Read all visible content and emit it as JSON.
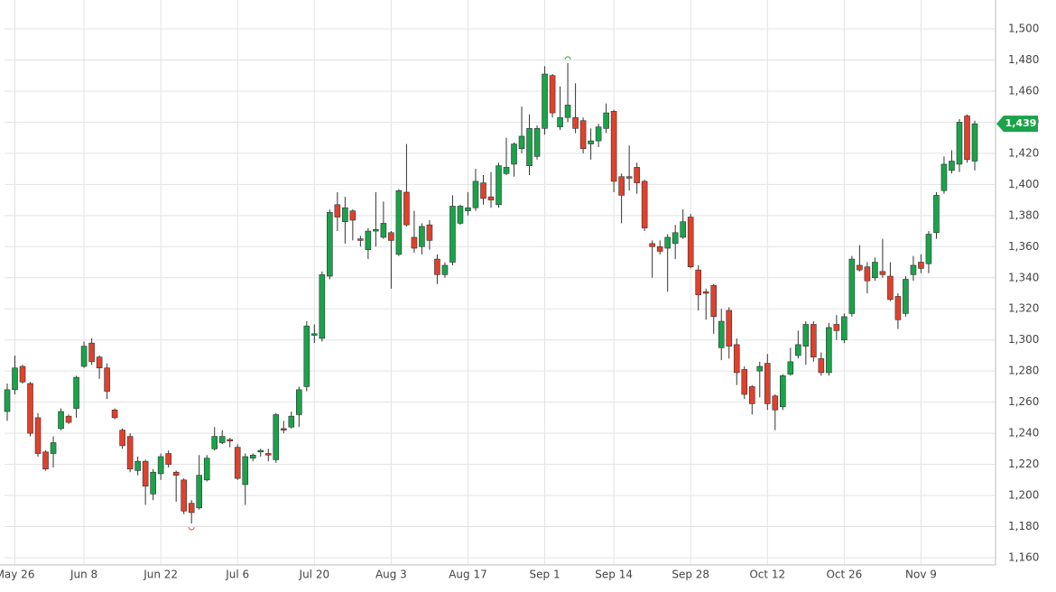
{
  "chart_data": {
    "type": "candlestick",
    "categories": [
      null,
      "May 26",
      null,
      null,
      null,
      null,
      null,
      null,
      null,
      null,
      "Jun 8",
      null,
      null,
      null,
      null,
      null,
      null,
      null,
      null,
      null,
      "Jun 22",
      null,
      null,
      null,
      null,
      null,
      null,
      null,
      null,
      null,
      "Jul 6",
      null,
      null,
      null,
      null,
      null,
      null,
      null,
      null,
      null,
      "Jul 20",
      null,
      null,
      null,
      null,
      null,
      null,
      null,
      null,
      null,
      "Aug 3",
      null,
      null,
      null,
      null,
      null,
      null,
      null,
      null,
      null,
      "Aug 17",
      null,
      null,
      null,
      null,
      null,
      null,
      null,
      null,
      null,
      "Sep 1",
      null,
      null,
      null,
      null,
      null,
      null,
      null,
      null,
      "Sep 14",
      null,
      null,
      null,
      null,
      null,
      null,
      null,
      null,
      null,
      "Sep 28",
      null,
      null,
      null,
      null,
      null,
      null,
      null,
      null,
      null,
      "Oct 12",
      null,
      null,
      null,
      null,
      null,
      null,
      null,
      null,
      null,
      "Oct 26",
      null,
      null,
      null,
      null,
      null,
      null,
      null,
      null,
      null,
      "Nov 9",
      null,
      null,
      null,
      null,
      null,
      null,
      null
    ],
    "ohlc": [
      [
        1254,
        1272,
        1248,
        1268
      ],
      [
        1268,
        1290,
        1265,
        1282
      ],
      [
        1283,
        1284,
        1272,
        1273
      ],
      [
        1272,
        1273,
        1238,
        1240
      ],
      [
        1250,
        1253,
        1225,
        1227
      ],
      [
        1228,
        1229,
        1216,
        1217
      ],
      [
        1227,
        1238,
        1218,
        1234
      ],
      [
        1243,
        1256,
        1242,
        1254
      ],
      [
        1251,
        1252,
        1246,
        1247
      ],
      [
        1256,
        1277,
        1250,
        1276
      ],
      [
        1283,
        1299,
        1282,
        1296
      ],
      [
        1298,
        1301,
        1284,
        1286
      ],
      [
        1289,
        1290,
        1275,
        1282
      ],
      [
        1282,
        1285,
        1262,
        1267
      ],
      [
        1255,
        1256,
        1249,
        1250
      ],
      [
        1242,
        1243,
        1230,
        1232
      ],
      [
        1238,
        1240,
        1215,
        1217
      ],
      [
        1216,
        1225,
        1213,
        1222
      ],
      [
        1222,
        1223,
        1194,
        1206
      ],
      [
        1201,
        1217,
        1197,
        1215
      ],
      [
        1214,
        1227,
        1210,
        1225
      ],
      [
        1227,
        1229,
        1218,
        1220
      ],
      [
        1215,
        1216,
        1196,
        1213
      ],
      [
        1210,
        1211,
        1188,
        1190
      ],
      [
        1195,
        1197,
        1182,
        1189
      ],
      [
        1192,
        1226,
        1191,
        1213
      ],
      [
        1210,
        1226,
        1209,
        1224
      ],
      [
        1230,
        1244,
        1229,
        1238
      ],
      [
        1234,
        1242,
        1233,
        1238
      ],
      [
        1236,
        1237,
        1231,
        1235
      ],
      [
        1231,
        1233,
        1210,
        1211
      ],
      [
        1207,
        1227,
        1194,
        1225
      ],
      [
        1224,
        1227,
        1222,
        1226
      ],
      [
        1228,
        1230,
        1225,
        1229
      ],
      [
        1227,
        1230,
        1222,
        1226
      ],
      [
        1223,
        1253,
        1221,
        1252
      ],
      [
        1243,
        1248,
        1240,
        1242
      ],
      [
        1244,
        1254,
        1243,
        1251
      ],
      [
        1252,
        1270,
        1244,
        1268
      ],
      [
        1270,
        1312,
        1267,
        1309
      ],
      [
        1303,
        1310,
        1298,
        1304
      ],
      [
        1301,
        1344,
        1299,
        1342
      ],
      [
        1341,
        1384,
        1339,
        1382
      ],
      [
        1387,
        1395,
        1370,
        1379
      ],
      [
        1376,
        1392,
        1362,
        1385
      ],
      [
        1383,
        1384,
        1364,
        1377
      ],
      [
        1365,
        1367,
        1360,
        1364
      ],
      [
        1358,
        1372,
        1352,
        1370
      ],
      [
        1370,
        1395,
        1360,
        1371
      ],
      [
        1366,
        1389,
        1365,
        1375
      ],
      [
        1369,
        1370,
        1333,
        1364
      ],
      [
        1355,
        1397,
        1354,
        1396
      ],
      [
        1395,
        1426,
        1373,
        1374
      ],
      [
        1366,
        1383,
        1356,
        1359
      ],
      [
        1360,
        1375,
        1355,
        1373
      ],
      [
        1374,
        1377,
        1358,
        1364
      ],
      [
        1352,
        1355,
        1336,
        1342
      ],
      [
        1342,
        1350,
        1340,
        1348
      ],
      [
        1350,
        1393,
        1348,
        1386
      ],
      [
        1375,
        1387,
        1374,
        1386
      ],
      [
        1383,
        1395,
        1380,
        1385
      ],
      [
        1385,
        1410,
        1383,
        1402
      ],
      [
        1401,
        1406,
        1387,
        1391
      ],
      [
        1392,
        1408,
        1385,
        1390
      ],
      [
        1387,
        1414,
        1385,
        1412
      ],
      [
        1407,
        1430,
        1406,
        1411
      ],
      [
        1413,
        1427,
        1405,
        1426
      ],
      [
        1423,
        1450,
        1420,
        1431
      ],
      [
        1412,
        1445,
        1406,
        1436
      ],
      [
        1418,
        1438,
        1416,
        1436
      ],
      [
        1436,
        1476,
        1432,
        1471
      ],
      [
        1470,
        1471,
        1443,
        1446
      ],
      [
        1437,
        1463,
        1435,
        1443
      ],
      [
        1443,
        1478,
        1440,
        1451
      ],
      [
        1443,
        1465,
        1433,
        1436
      ],
      [
        1441,
        1443,
        1420,
        1423
      ],
      [
        1426,
        1436,
        1416,
        1428
      ],
      [
        1428,
        1439,
        1424,
        1437
      ],
      [
        1436,
        1452,
        1433,
        1446
      ],
      [
        1447,
        1448,
        1395,
        1402
      ],
      [
        1405,
        1407,
        1375,
        1393
      ],
      [
        1405,
        1425,
        1396,
        1404
      ],
      [
        1411,
        1414,
        1394,
        1401
      ],
      [
        1402,
        1403,
        1370,
        1372
      ],
      [
        1362,
        1364,
        1340,
        1360
      ],
      [
        1360,
        1364,
        1355,
        1357
      ],
      [
        1359,
        1368,
        1331,
        1366
      ],
      [
        1362,
        1374,
        1352,
        1369
      ],
      [
        1366,
        1384,
        1365,
        1376
      ],
      [
        1379,
        1381,
        1346,
        1347
      ],
      [
        1345,
        1348,
        1319,
        1329
      ],
      [
        1331,
        1333,
        1313,
        1330
      ],
      [
        1335,
        1336,
        1304,
        1315
      ],
      [
        1295,
        1320,
        1287,
        1312
      ],
      [
        1319,
        1321,
        1288,
        1296
      ],
      [
        1297,
        1301,
        1271,
        1279
      ],
      [
        1281,
        1283,
        1262,
        1265
      ],
      [
        1270,
        1271,
        1252,
        1259
      ],
      [
        1280,
        1286,
        1263,
        1283
      ],
      [
        1285,
        1291,
        1255,
        1259
      ],
      [
        1264,
        1265,
        1242,
        1255
      ],
      [
        1257,
        1278,
        1255,
        1277
      ],
      [
        1278,
        1295,
        1277,
        1286
      ],
      [
        1290,
        1306,
        1288,
        1297
      ],
      [
        1296,
        1312,
        1284,
        1310
      ],
      [
        1310,
        1312,
        1286,
        1289
      ],
      [
        1288,
        1292,
        1277,
        1279
      ],
      [
        1279,
        1311,
        1277,
        1308
      ],
      [
        1310,
        1316,
        1300,
        1306
      ],
      [
        1300,
        1317,
        1298,
        1315
      ],
      [
        1317,
        1354,
        1315,
        1352
      ],
      [
        1348,
        1361,
        1344,
        1345
      ],
      [
        1347,
        1350,
        1330,
        1338
      ],
      [
        1340,
        1353,
        1338,
        1350
      ],
      [
        1344,
        1365,
        1340,
        1342
      ],
      [
        1341,
        1350,
        1325,
        1326
      ],
      [
        1328,
        1330,
        1307,
        1313
      ],
      [
        1317,
        1341,
        1315,
        1339
      ],
      [
        1342,
        1354,
        1338,
        1348
      ],
      [
        1350,
        1355,
        1343,
        1346
      ],
      [
        1349,
        1370,
        1343,
        1368
      ],
      [
        1369,
        1395,
        1365,
        1393
      ],
      [
        1396,
        1418,
        1394,
        1413
      ],
      [
        1409,
        1422,
        1407,
        1415
      ],
      [
        1413,
        1442,
        1408,
        1440
      ],
      [
        1444,
        1445,
        1414,
        1416
      ],
      [
        1415,
        1441,
        1409,
        1439
      ]
    ],
    "up_color": "#1aa34a",
    "down_color": "#e0412c",
    "ylim": [
      1160,
      1500
    ],
    "yticks": [
      {
        "value": 1160,
        "label": "1,160"
      },
      {
        "value": 1180,
        "label": "1,180"
      },
      {
        "value": 1200,
        "label": "1,200"
      },
      {
        "value": 1220,
        "label": "1,220"
      },
      {
        "value": 1240,
        "label": "1,240"
      },
      {
        "value": 1260,
        "label": "1,260"
      },
      {
        "value": 1280,
        "label": "1,280"
      },
      {
        "value": 1300,
        "label": "1,300"
      },
      {
        "value": 1320,
        "label": "1,320"
      },
      {
        "value": 1340,
        "label": "1,340"
      },
      {
        "value": 1360,
        "label": "1,360"
      },
      {
        "value": 1380,
        "label": "1,380"
      },
      {
        "value": 1400,
        "label": "1,400"
      },
      {
        "value": 1420,
        "label": "1,420"
      },
      {
        "value": 1440,
        "label": "1,440"
      },
      {
        "value": 1460,
        "label": "1,460"
      },
      {
        "value": 1480,
        "label": "1,480"
      },
      {
        "value": 1500,
        "label": "1,500"
      }
    ],
    "last_price": {
      "value": 1439,
      "label": "1,439"
    },
    "grid": true
  }
}
